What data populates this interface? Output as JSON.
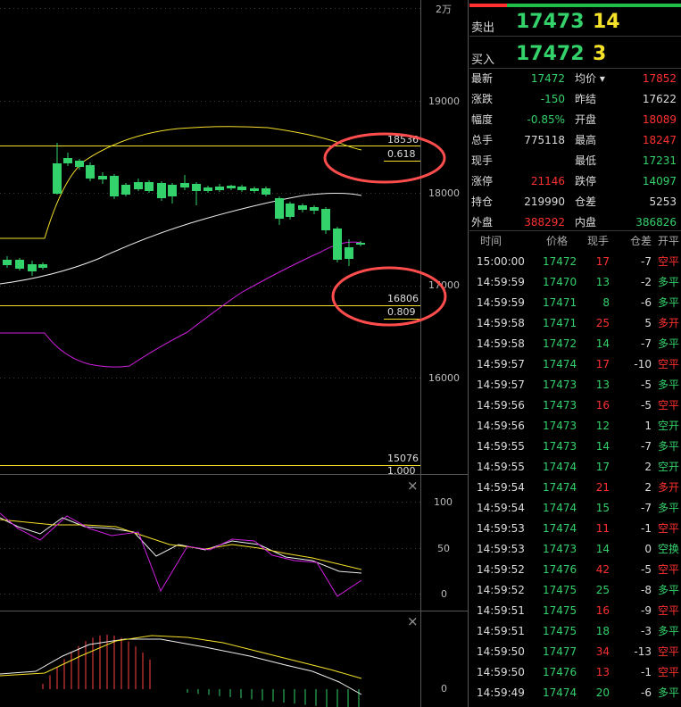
{
  "colors": {
    "up": "#ff3030",
    "down": "#33d26a",
    "flat": "#dddddd",
    "yellow": "#f5e12a",
    "bg": "#000000",
    "ellipse": "#ff4d4d"
  },
  "axis": {
    "unit": "2万",
    "ticks": [
      "19000",
      "18000",
      "17000",
      "16000"
    ]
  },
  "levels": [
    {
      "price": "18536",
      "ratio": "0.618"
    },
    {
      "price": "16806",
      "ratio": "0.809"
    },
    {
      "price": "15076",
      "ratio": "1.000"
    }
  ],
  "osc_axis": [
    "100",
    "50",
    "0"
  ],
  "macd_axis": [
    "0"
  ],
  "close_icon": "×",
  "quote": {
    "sell": {
      "label": "卖出",
      "price": "17473",
      "vol": "14"
    },
    "buy": {
      "label": "买入",
      "price": "17472",
      "vol": "3"
    }
  },
  "stats": [
    [
      {
        "label": "最新",
        "value": "17472",
        "color": "down"
      },
      {
        "label": "均价 ▾",
        "value": "17852",
        "color": "up"
      }
    ],
    [
      {
        "label": "涨跌",
        "value": "-150",
        "color": "down"
      },
      {
        "label": "昨结",
        "value": "17622",
        "color": "flat"
      }
    ],
    [
      {
        "label": "幅度",
        "value": "-0.85%",
        "color": "down"
      },
      {
        "label": "开盘",
        "value": "18089",
        "color": "up"
      }
    ],
    [
      {
        "label": "总手",
        "value": "775118",
        "color": "flat"
      },
      {
        "label": "最高",
        "value": "18247",
        "color": "up"
      }
    ],
    [
      {
        "label": "现手",
        "value": "",
        "color": "flat"
      },
      {
        "label": "最低",
        "value": "17231",
        "color": "down"
      }
    ],
    [
      {
        "label": "涨停",
        "value": "21146",
        "color": "up"
      },
      {
        "label": "跌停",
        "value": "14097",
        "color": "down"
      }
    ],
    [
      {
        "label": "持仓",
        "value": "219990",
        "color": "flat"
      },
      {
        "label": "仓差",
        "value": "5253",
        "color": "flat"
      }
    ],
    [
      {
        "label": "外盘",
        "value": "388292",
        "color": "up"
      },
      {
        "label": "内盘",
        "value": "386826",
        "color": "down"
      }
    ]
  ],
  "ticks_header": {
    "time": "时间",
    "price": "价格",
    "hand": "现手",
    "diff": "仓差",
    "type": "开平"
  },
  "ticks": [
    {
      "time": "15:00:00",
      "price": "17472",
      "hand": "17",
      "hc": "up",
      "diff": "-7",
      "type": "空平",
      "tc": "up"
    },
    {
      "time": "14:59:59",
      "price": "17470",
      "hand": "13",
      "hc": "down",
      "diff": "-2",
      "type": "多平",
      "tc": "down"
    },
    {
      "time": "14:59:59",
      "price": "17471",
      "hand": "8",
      "hc": "down",
      "diff": "-6",
      "type": "多平",
      "tc": "down"
    },
    {
      "time": "14:59:58",
      "price": "17471",
      "hand": "25",
      "hc": "up",
      "diff": "5",
      "type": "多开",
      "tc": "up"
    },
    {
      "time": "14:59:58",
      "price": "17472",
      "hand": "14",
      "hc": "down",
      "diff": "-7",
      "type": "多平",
      "tc": "down"
    },
    {
      "time": "14:59:57",
      "price": "17474",
      "hand": "17",
      "hc": "up",
      "diff": "-10",
      "type": "空平",
      "tc": "up"
    },
    {
      "time": "14:59:57",
      "price": "17473",
      "hand": "13",
      "hc": "down",
      "diff": "-5",
      "type": "多平",
      "tc": "down"
    },
    {
      "time": "14:59:56",
      "price": "17473",
      "hand": "16",
      "hc": "up",
      "diff": "-5",
      "type": "空平",
      "tc": "up"
    },
    {
      "time": "14:59:56",
      "price": "17473",
      "hand": "12",
      "hc": "down",
      "diff": "1",
      "type": "空开",
      "tc": "down"
    },
    {
      "time": "14:59:55",
      "price": "17473",
      "hand": "14",
      "hc": "down",
      "diff": "-7",
      "type": "多平",
      "tc": "down"
    },
    {
      "time": "14:59:55",
      "price": "17474",
      "hand": "17",
      "hc": "down",
      "diff": "2",
      "type": "空开",
      "tc": "down"
    },
    {
      "time": "14:59:54",
      "price": "17474",
      "hand": "21",
      "hc": "up",
      "diff": "2",
      "type": "多开",
      "tc": "up"
    },
    {
      "time": "14:59:54",
      "price": "17474",
      "hand": "15",
      "hc": "down",
      "diff": "-7",
      "type": "多平",
      "tc": "down"
    },
    {
      "time": "14:59:53",
      "price": "17474",
      "hand": "11",
      "hc": "up",
      "diff": "-1",
      "type": "空平",
      "tc": "up"
    },
    {
      "time": "14:59:53",
      "price": "17473",
      "hand": "14",
      "hc": "down",
      "diff": "0",
      "type": "空换",
      "tc": "down"
    },
    {
      "time": "14:59:52",
      "price": "17476",
      "hand": "42",
      "hc": "up",
      "diff": "-5",
      "type": "空平",
      "tc": "up"
    },
    {
      "time": "14:59:52",
      "price": "17475",
      "hand": "25",
      "hc": "down",
      "diff": "-8",
      "type": "多平",
      "tc": "down"
    },
    {
      "time": "14:59:51",
      "price": "17475",
      "hand": "16",
      "hc": "up",
      "diff": "-9",
      "type": "空平",
      "tc": "up"
    },
    {
      "time": "14:59:51",
      "price": "17475",
      "hand": "18",
      "hc": "down",
      "diff": "-3",
      "type": "多平",
      "tc": "down"
    },
    {
      "time": "14:59:50",
      "price": "17477",
      "hand": "34",
      "hc": "up",
      "diff": "-13",
      "type": "空平",
      "tc": "up"
    },
    {
      "time": "14:59:50",
      "price": "17476",
      "hand": "13",
      "hc": "up",
      "diff": "-1",
      "type": "空平",
      "tc": "up"
    },
    {
      "time": "14:59:49",
      "price": "17474",
      "hand": "20",
      "hc": "down",
      "diff": "-6",
      "type": "多平",
      "tc": "down"
    }
  ]
}
